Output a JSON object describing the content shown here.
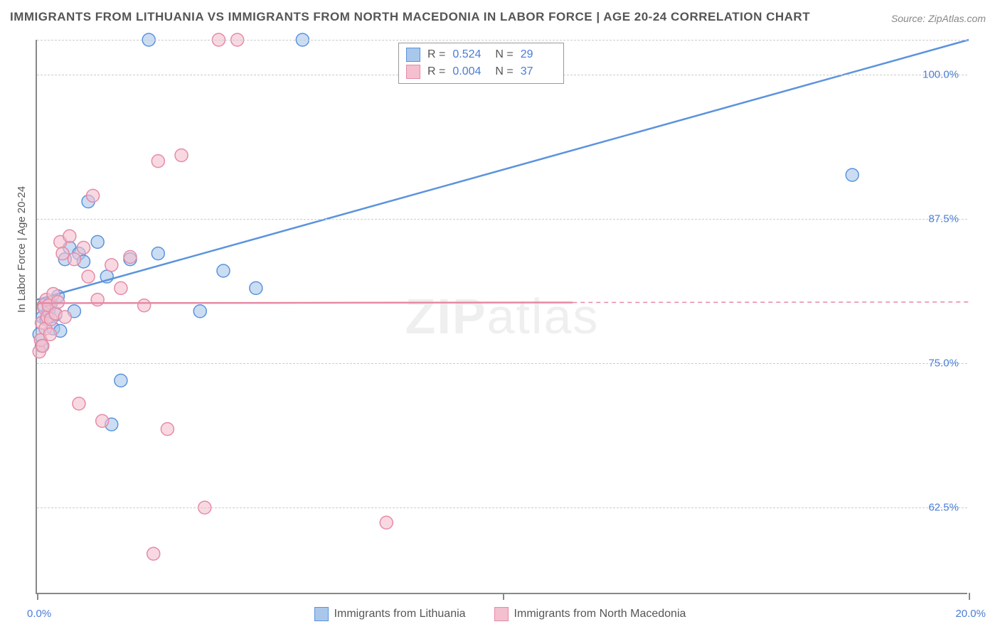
{
  "title": "IMMIGRANTS FROM LITHUANIA VS IMMIGRANTS FROM NORTH MACEDONIA IN LABOR FORCE | AGE 20-24 CORRELATION CHART",
  "source_label": "Source: ZipAtlas.com",
  "source_prefix": "Source: ",
  "source_name": "ZipAtlas.com",
  "watermark_part1": "ZIP",
  "watermark_part2": "atlas",
  "y_axis_label": "In Labor Force | Age 20-24",
  "chart": {
    "type": "scatter-correlation",
    "background_color": "#ffffff",
    "grid_color": "#cccccc",
    "axis_color": "#888888",
    "tick_label_color": "#4a7dd6",
    "xlim": [
      0.0,
      20.0
    ],
    "ylim": [
      55.0,
      103.0
    ],
    "x_ticks": [
      {
        "value": 0.0,
        "label": "0.0%"
      },
      {
        "value": 10.0,
        "label": ""
      },
      {
        "value": 20.0,
        "label": "20.0%"
      }
    ],
    "y_gridlines": [
      62.5,
      75.0,
      87.5,
      100.0,
      103.0
    ],
    "y_tick_labels": [
      {
        "value": 62.5,
        "label": "62.5%"
      },
      {
        "value": 75.0,
        "label": "75.0%"
      },
      {
        "value": 87.5,
        "label": "87.5%"
      },
      {
        "value": 100.0,
        "label": "100.0%"
      }
    ],
    "marker_radius": 9,
    "marker_stroke_width": 1.5,
    "marker_fill_opacity": 0.25,
    "line_width": 2.5,
    "series": [
      {
        "name": "Immigrants from Lithuania",
        "color": "#5b93dd",
        "fill": "#a9c7eb",
        "R": "0.524",
        "N": "29",
        "trend": {
          "x1": 0.0,
          "y1": 80.5,
          "x2": 20.0,
          "y2": 103.0,
          "solid_until": 20.0
        },
        "points": [
          [
            0.05,
            77.5
          ],
          [
            0.1,
            76.5
          ],
          [
            0.12,
            79.0
          ],
          [
            0.15,
            80.0
          ],
          [
            0.2,
            78.8
          ],
          [
            0.25,
            79.5
          ],
          [
            0.3,
            80.2
          ],
          [
            0.35,
            78.0
          ],
          [
            0.4,
            79.2
          ],
          [
            0.45,
            80.8
          ],
          [
            0.5,
            77.8
          ],
          [
            0.6,
            84.0
          ],
          [
            0.7,
            85.0
          ],
          [
            0.8,
            79.5
          ],
          [
            0.9,
            84.5
          ],
          [
            1.0,
            83.8
          ],
          [
            1.1,
            89.0
          ],
          [
            1.3,
            85.5
          ],
          [
            1.5,
            82.5
          ],
          [
            1.6,
            69.7
          ],
          [
            1.8,
            73.5
          ],
          [
            2.0,
            84.0
          ],
          [
            2.4,
            103.0
          ],
          [
            2.6,
            84.5
          ],
          [
            3.5,
            79.5
          ],
          [
            4.0,
            83.0
          ],
          [
            4.7,
            81.5
          ],
          [
            5.7,
            103.0
          ],
          [
            17.5,
            91.3
          ]
        ]
      },
      {
        "name": "Immigrants from North Macedonia",
        "color": "#e68aa5",
        "fill": "#f4bfcf",
        "R": "0.004",
        "N": "37",
        "trend": {
          "x1": 0.0,
          "y1": 80.2,
          "x2": 20.0,
          "y2": 80.3,
          "solid_until": 11.5
        },
        "points": [
          [
            0.05,
            76.0
          ],
          [
            0.08,
            77.0
          ],
          [
            0.1,
            78.5
          ],
          [
            0.12,
            76.5
          ],
          [
            0.15,
            79.8
          ],
          [
            0.18,
            78.0
          ],
          [
            0.2,
            80.5
          ],
          [
            0.22,
            79.0
          ],
          [
            0.25,
            80.0
          ],
          [
            0.28,
            77.5
          ],
          [
            0.3,
            78.8
          ],
          [
            0.35,
            81.0
          ],
          [
            0.4,
            79.3
          ],
          [
            0.45,
            80.3
          ],
          [
            0.5,
            85.5
          ],
          [
            0.55,
            84.5
          ],
          [
            0.6,
            79.0
          ],
          [
            0.7,
            86.0
          ],
          [
            0.8,
            84.0
          ],
          [
            0.9,
            71.5
          ],
          [
            1.0,
            85.0
          ],
          [
            1.1,
            82.5
          ],
          [
            1.2,
            89.5
          ],
          [
            1.3,
            80.5
          ],
          [
            1.4,
            70.0
          ],
          [
            1.6,
            83.5
          ],
          [
            1.8,
            81.5
          ],
          [
            2.0,
            84.2
          ],
          [
            2.3,
            80.0
          ],
          [
            2.5,
            58.5
          ],
          [
            2.6,
            92.5
          ],
          [
            2.8,
            69.3
          ],
          [
            3.1,
            93.0
          ],
          [
            3.6,
            62.5
          ],
          [
            3.9,
            103.0
          ],
          [
            4.3,
            103.0
          ],
          [
            7.5,
            61.2
          ]
        ]
      }
    ]
  },
  "legend_bottom": [
    {
      "swatch_color": "#a9c7eb",
      "swatch_border": "#5b93dd",
      "label": "Immigrants from Lithuania"
    },
    {
      "swatch_color": "#f4bfcf",
      "swatch_border": "#e68aa5",
      "label": "Immigrants from North Macedonia"
    }
  ],
  "stats_box": {
    "r_prefix": "R  =",
    "n_prefix": "N  ="
  }
}
